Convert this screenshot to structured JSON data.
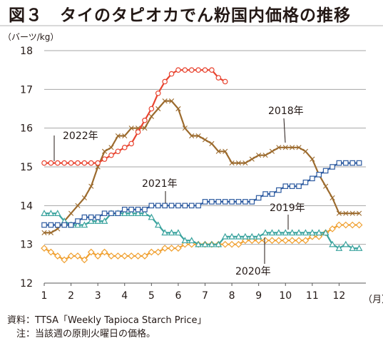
{
  "title": "図３　タイのタピオカでん粉国内価格の推移",
  "notes": {
    "source": "資料：TTSA「Weekly Tapioca Starch Price」",
    "note": "　注：当該週の原則火曜日の価格。"
  },
  "chart_data": {
    "type": "line",
    "ylabel": "（バーツ/kg）",
    "xlabel": "（月）",
    "ylim": [
      12,
      18
    ],
    "xlim": [
      1,
      13
    ],
    "yticks": [
      12,
      13,
      14,
      15,
      16,
      17,
      18
    ],
    "xticks": [
      1,
      2,
      3,
      4,
      5,
      6,
      7,
      8,
      9,
      10,
      11,
      12
    ],
    "grid": "horizontal",
    "legend": "inline labels",
    "series": [
      {
        "name": "2018年",
        "color": "#9c6b2e",
        "marker": "x",
        "x": [
          1,
          1.25,
          1.5,
          1.75,
          2,
          2.25,
          2.5,
          2.75,
          3,
          3.25,
          3.5,
          3.75,
          4,
          4.25,
          4.5,
          4.75,
          5,
          5.25,
          5.5,
          5.75,
          6,
          6.25,
          6.5,
          6.75,
          7,
          7.25,
          7.5,
          7.75,
          8,
          8.25,
          8.5,
          8.75,
          9,
          9.25,
          9.5,
          9.75,
          10,
          10.25,
          10.5,
          10.75,
          11,
          11.25,
          11.5,
          11.75,
          12,
          12.25,
          12.5,
          12.75
        ],
        "values": [
          13.3,
          13.3,
          13.4,
          13.6,
          13.8,
          14.0,
          14.2,
          14.5,
          15.0,
          15.4,
          15.5,
          15.8,
          15.8,
          16.0,
          16.0,
          16.0,
          16.3,
          16.5,
          16.7,
          16.7,
          16.5,
          16.0,
          15.8,
          15.8,
          15.7,
          15.6,
          15.4,
          15.4,
          15.1,
          15.1,
          15.1,
          15.2,
          15.3,
          15.3,
          15.4,
          15.5,
          15.5,
          15.5,
          15.5,
          15.4,
          15.2,
          14.8,
          14.5,
          14.2,
          13.8,
          13.8,
          13.8,
          13.8
        ]
      },
      {
        "name": "2019年",
        "color": "#f0a030",
        "marker": "diamond",
        "x": [
          1,
          1.25,
          1.5,
          1.75,
          2,
          2.25,
          2.5,
          2.75,
          3,
          3.25,
          3.5,
          3.75,
          4,
          4.25,
          4.5,
          4.75,
          5,
          5.25,
          5.5,
          5.75,
          6,
          6.25,
          6.5,
          6.75,
          7,
          7.25,
          7.5,
          7.75,
          8,
          8.25,
          8.5,
          8.75,
          9,
          9.25,
          9.5,
          9.75,
          10,
          10.25,
          10.5,
          10.75,
          11,
          11.25,
          11.5,
          11.75,
          12,
          12.25,
          12.5,
          12.75
        ],
        "values": [
          12.9,
          12.8,
          12.7,
          12.6,
          12.7,
          12.7,
          12.6,
          12.8,
          12.7,
          12.8,
          12.7,
          12.7,
          12.7,
          12.7,
          12.7,
          12.7,
          12.8,
          12.8,
          12.9,
          12.9,
          12.9,
          13.0,
          13.0,
          13.0,
          13.0,
          13.0,
          13.0,
          13.0,
          13.0,
          13.0,
          13.1,
          13.1,
          13.1,
          13.1,
          13.1,
          13.1,
          13.1,
          13.1,
          13.1,
          13.1,
          13.2,
          13.2,
          13.3,
          13.4,
          13.5,
          13.5,
          13.5,
          13.5
        ]
      },
      {
        "name": "2020年",
        "color": "#3aa39e",
        "marker": "triangle",
        "x": [
          1,
          1.25,
          1.5,
          1.75,
          2,
          2.25,
          2.5,
          2.75,
          3,
          3.25,
          3.5,
          3.75,
          4,
          4.25,
          4.5,
          4.75,
          5,
          5.25,
          5.5,
          5.75,
          6,
          6.25,
          6.5,
          6.75,
          7,
          7.25,
          7.5,
          7.75,
          8,
          8.25,
          8.5,
          8.75,
          9,
          9.25,
          9.5,
          9.75,
          10,
          10.25,
          10.5,
          10.75,
          11,
          11.25,
          11.5,
          11.75,
          12,
          12.25,
          12.5,
          12.75
        ],
        "values": [
          13.8,
          13.8,
          13.8,
          13.6,
          13.5,
          13.5,
          13.5,
          13.6,
          13.6,
          13.6,
          13.8,
          13.8,
          13.8,
          13.8,
          13.8,
          13.8,
          13.7,
          13.5,
          13.3,
          13.3,
          13.3,
          13.1,
          13.1,
          13.0,
          13.0,
          13.0,
          13.0,
          13.2,
          13.2,
          13.2,
          13.2,
          13.2,
          13.2,
          13.3,
          13.3,
          13.3,
          13.3,
          13.3,
          13.3,
          13.3,
          13.3,
          13.3,
          13.3,
          13.0,
          12.9,
          13.0,
          12.9,
          12.9
        ]
      },
      {
        "name": "2021年",
        "color": "#2c5aa0",
        "marker": "square",
        "x": [
          1,
          1.25,
          1.5,
          1.75,
          2,
          2.25,
          2.5,
          2.75,
          3,
          3.25,
          3.5,
          3.75,
          4,
          4.25,
          4.5,
          4.75,
          5,
          5.25,
          5.5,
          5.75,
          6,
          6.25,
          6.5,
          6.75,
          7,
          7.25,
          7.5,
          7.75,
          8,
          8.25,
          8.5,
          8.75,
          9,
          9.25,
          9.5,
          9.75,
          10,
          10.25,
          10.5,
          10.75,
          11,
          11.25,
          11.5,
          11.75,
          12,
          12.25,
          12.5,
          12.75
        ],
        "values": [
          13.5,
          13.5,
          13.5,
          13.5,
          13.5,
          13.6,
          13.7,
          13.7,
          13.7,
          13.8,
          13.8,
          13.8,
          13.9,
          13.9,
          13.9,
          13.9,
          14.0,
          14.0,
          14.0,
          14.0,
          14.0,
          14.0,
          14.0,
          14.0,
          14.1,
          14.1,
          14.1,
          14.1,
          14.1,
          14.1,
          14.1,
          14.1,
          14.2,
          14.3,
          14.3,
          14.4,
          14.5,
          14.5,
          14.5,
          14.6,
          14.7,
          14.8,
          14.9,
          15.0,
          15.1,
          15.1,
          15.1,
          15.1
        ]
      },
      {
        "name": "2022年",
        "color": "#e8432f",
        "marker": "circle",
        "x": [
          1,
          1.25,
          1.5,
          1.75,
          2,
          2.25,
          2.5,
          2.75,
          3,
          3.25,
          3.5,
          3.75,
          4,
          4.25,
          4.5,
          4.75,
          5,
          5.25,
          5.5,
          5.75,
          6,
          6.25,
          6.5,
          6.75,
          7,
          7.25,
          7.5,
          7.75
        ],
        "values": [
          15.1,
          15.1,
          15.1,
          15.1,
          15.1,
          15.1,
          15.1,
          15.1,
          15.1,
          15.2,
          15.3,
          15.4,
          15.5,
          15.6,
          15.9,
          16.2,
          16.5,
          16.9,
          17.2,
          17.4,
          17.5,
          17.5,
          17.5,
          17.5,
          17.5,
          17.5,
          17.3,
          17.2
        ]
      }
    ],
    "labels": [
      {
        "text": "2018年",
        "series": "2018年"
      },
      {
        "text": "2019年",
        "series": "2019年"
      },
      {
        "text": "2020年",
        "series": "2020年"
      },
      {
        "text": "2021年",
        "series": "2021年"
      },
      {
        "text": "2022年",
        "series": "2022年"
      }
    ]
  }
}
